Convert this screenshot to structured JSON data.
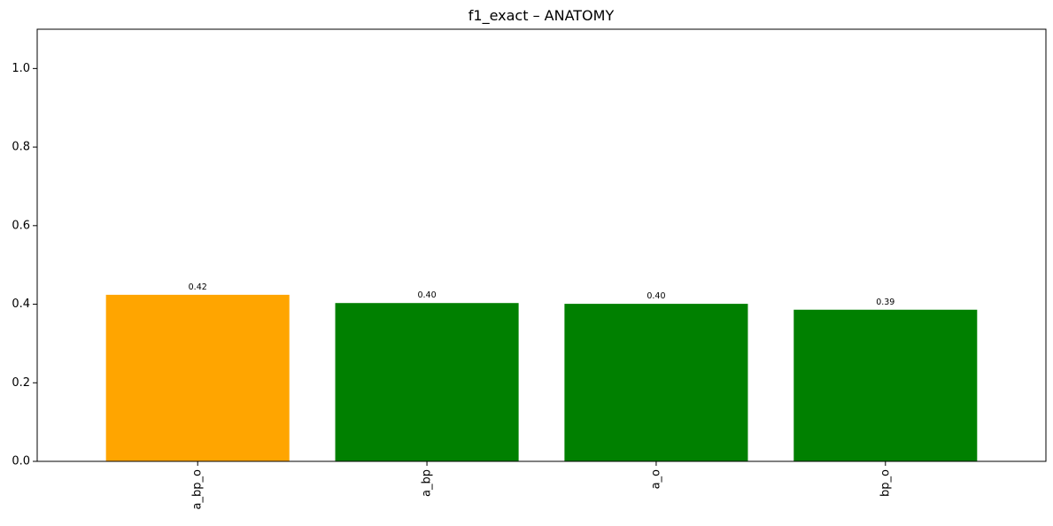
{
  "chart_data": {
    "type": "bar",
    "title": "f1_exact – ANATOMY",
    "xlabel": "",
    "ylabel": "",
    "categories": [
      "a_bp_o",
      "a_bp",
      "a_o",
      "bp_o"
    ],
    "values": [
      0.424,
      0.403,
      0.401,
      0.386
    ],
    "data_labels": [
      "0.42",
      "0.40",
      "0.40",
      "0.39"
    ],
    "bar_colors": [
      "#ffa500",
      "#008000",
      "#008000",
      "#008000"
    ],
    "ylim": [
      0,
      1.1
    ],
    "yticks": [
      0.0,
      0.2,
      0.4,
      0.6,
      0.8,
      1.0
    ],
    "ytick_labels": [
      "0.0",
      "0.2",
      "0.4",
      "0.6",
      "0.8",
      "1.0"
    ],
    "grid": false,
    "legend": "none",
    "xtick_rotation": "vertical"
  }
}
